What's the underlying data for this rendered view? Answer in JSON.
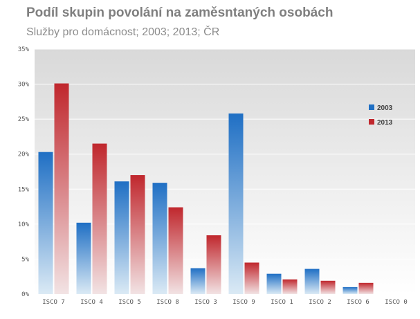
{
  "title": "Podíl skupin povolání na zaměsntaných osobách",
  "subtitle": "Služby pro domácnost; 2003; 2013; ČR",
  "chart_data": {
    "type": "bar",
    "title": "Podíl skupin povolání na zaměsntaných osobách",
    "subtitle": "Služby pro domácnost; 2003; 2013; ČR",
    "categories": [
      "ISCO 7",
      "ISCO 4",
      "ISCO 5",
      "ISCO 8",
      "ISCO 3",
      "ISCO 9",
      "ISCO 1",
      "ISCO 2",
      "ISCO 6",
      "ISCO 0"
    ],
    "series": [
      {
        "name": "2003",
        "color": "#1f6fc4",
        "values": [
          20.3,
          10.2,
          16.1,
          15.9,
          3.7,
          25.8,
          2.9,
          3.6,
          1.0,
          0.0
        ]
      },
      {
        "name": "2013",
        "color": "#c0272d",
        "values": [
          30.1,
          21.5,
          17.0,
          12.4,
          8.4,
          4.5,
          2.1,
          1.9,
          1.6,
          0.0
        ]
      }
    ],
    "ylim": [
      0,
      35
    ],
    "yticks": [
      "0%",
      "5%",
      "10%",
      "15%",
      "20%",
      "25%",
      "30%",
      "35%"
    ],
    "grid": true,
    "legend": "right"
  }
}
